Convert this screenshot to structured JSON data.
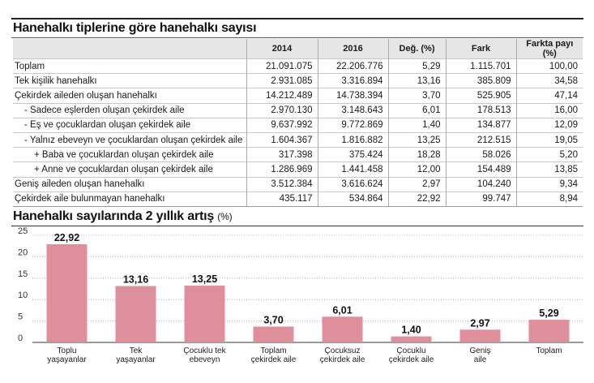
{
  "table": {
    "title": "Hanehalkı tiplerine göre hanehalkı sayısı",
    "headers": [
      "",
      "2014",
      "2016",
      "Değ. (%)",
      "Fark",
      "Farkta payı (%)"
    ],
    "rows": [
      {
        "label": "Toplam",
        "level": 0,
        "y2014": "21.091.075",
        "y2016": "22.206.776",
        "change": "5,29",
        "diff": "1.115.701",
        "share": "100,00"
      },
      {
        "label": "Tek kişilik hanehalkı",
        "level": 0,
        "y2014": "2.931.085",
        "y2016": "3.316.894",
        "change": "13,16",
        "diff": "385.809",
        "share": "34,58"
      },
      {
        "label": "Çekirdek aileden oluşan hanehalkı",
        "level": 0,
        "y2014": "14.212.489",
        "y2016": "14.738.394",
        "change": "3,70",
        "diff": "525.905",
        "share": "47,14"
      },
      {
        "label": "- Sadece eşlerden oluşan çekirdek aile",
        "level": 1,
        "y2014": "2.970.130",
        "y2016": "3.148.643",
        "change": "6,01",
        "diff": "178.513",
        "share": "16,00"
      },
      {
        "label": "- Eş ve çocuklardan oluşan çekirdek aile",
        "level": 1,
        "y2014": "9.637.992",
        "y2016": "9.772.869",
        "change": "1,40",
        "diff": "134.877",
        "share": "12,09"
      },
      {
        "label": "- Yalnız ebeveyn ve çocuklardan oluşan çekirdek aile",
        "level": 1,
        "y2014": "1.604.367",
        "y2016": "1.816.882",
        "change": "13,25",
        "diff": "212.515",
        "share": "19,05"
      },
      {
        "label": "+ Baba ve çocuklardan oluşan çekirdek aile",
        "level": 2,
        "y2014": "317.398",
        "y2016": "375.424",
        "change": "18,28",
        "diff": "58.026",
        "share": "5,20"
      },
      {
        "label": "+ Anne ve çocuklardan oluşan çekirdek aile",
        "level": 2,
        "y2014": "1.286.969",
        "y2016": "1.441.458",
        "change": "12,00",
        "diff": "154.489",
        "share": "13,85"
      },
      {
        "label": "Geniş aileden oluşan hanehalkı",
        "level": 0,
        "y2014": "3.512.384",
        "y2016": "3.616.624",
        "change": "2,97",
        "diff": "104.240",
        "share": "9,34"
      },
      {
        "label": "Çekirdek aile bulunmayan hanehalkı",
        "level": 0,
        "y2014": "435.117",
        "y2016": "534.864",
        "change": "22,92",
        "diff": "99.747",
        "share": "8,94"
      }
    ]
  },
  "chart_data": {
    "type": "bar",
    "title": "Hanehalkı sayılarında 2 yıllık artış",
    "unit": "(%)",
    "ylim": [
      0,
      25
    ],
    "yticks": [
      0,
      5,
      10,
      15,
      20,
      25
    ],
    "grid": true,
    "categories": [
      [
        "Toplu",
        "yaşayanlar"
      ],
      [
        "Tek",
        "yaşayanlar"
      ],
      [
        "Çocuklu tek",
        "ebeveyn"
      ],
      [
        "Toplam",
        "çekirdek aile"
      ],
      [
        "Çocuksuz",
        "çekirdek aile"
      ],
      [
        "Çocuklu",
        "çekirdek aile"
      ],
      [
        "Geniş",
        "aile"
      ],
      [
        "Toplam"
      ]
    ],
    "values": [
      22.92,
      13.16,
      13.25,
      3.7,
      6.01,
      1.4,
      2.97,
      5.29
    ],
    "value_labels": [
      "22,92",
      "13,16",
      "13,25",
      "3,70",
      "6,01",
      "1,40",
      "2,97",
      "5,29"
    ],
    "bar_color": "#df8f9c"
  }
}
